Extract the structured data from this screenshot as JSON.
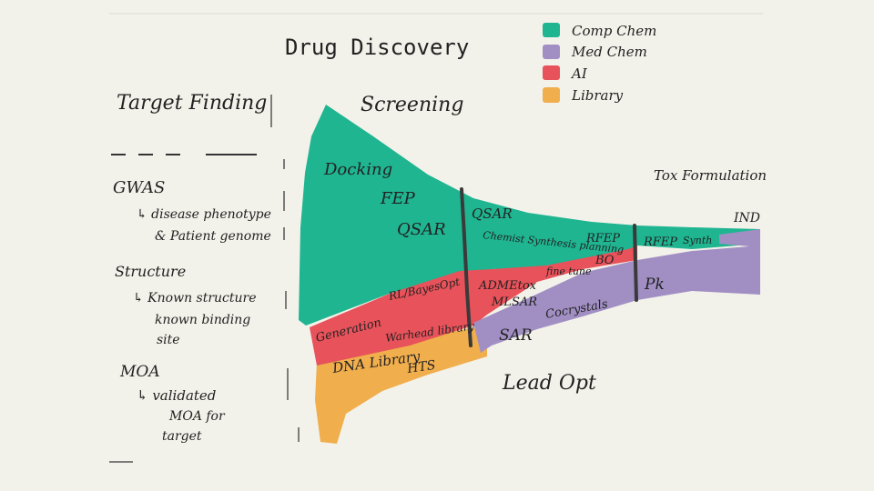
{
  "title": "Drug Discovery",
  "legend": [
    {
      "label": "Comp Chem",
      "color": "#1fb591"
    },
    {
      "label": "Med Chem",
      "color": "#a18fc4"
    },
    {
      "label": "AI",
      "color": "#e8525a"
    },
    {
      "label": "Library",
      "color": "#f0ae4d"
    }
  ],
  "stages": {
    "target_finding": "Target Finding",
    "screening": "Screening",
    "lead_opt": "Lead Opt",
    "tox_formulation": "Tox Formulation",
    "ind": "IND"
  },
  "target_finding": {
    "gwas": "GWAS",
    "gwas_detail_1": "↳ disease phenotype",
    "gwas_detail_2": "& Patient genome",
    "structure": "Structure",
    "structure_detail_1": "↳ Known structure",
    "structure_detail_2": "known binding",
    "structure_detail_3": "site",
    "moa": "MOA",
    "moa_detail_1": "↳ validated",
    "moa_detail_2": "MOA for",
    "moa_detail_3": "target"
  },
  "screening": {
    "docking": "Docking",
    "fep": "FEP",
    "qsar": "QSAR",
    "rl_bayesopt": "RL/BayesOpt",
    "generation": "Generation",
    "warhead_library": "Warhead library",
    "dna_library": "DNA Library",
    "hts": "HTS"
  },
  "lead_opt": {
    "qsar": "QSAR",
    "chemist_synthesis_planning": "Chemist Synthesis planning",
    "rfep": "RFEP",
    "bo": "BO",
    "admetox": "ADMEtox",
    "mlsar": "MLSAR",
    "fine_tune": "fine tune",
    "sar": "SAR",
    "cocrystals": "Cocrystals"
  },
  "tox": {
    "rfep": "RFEP",
    "synth": "Synth",
    "pk": "Pk"
  }
}
